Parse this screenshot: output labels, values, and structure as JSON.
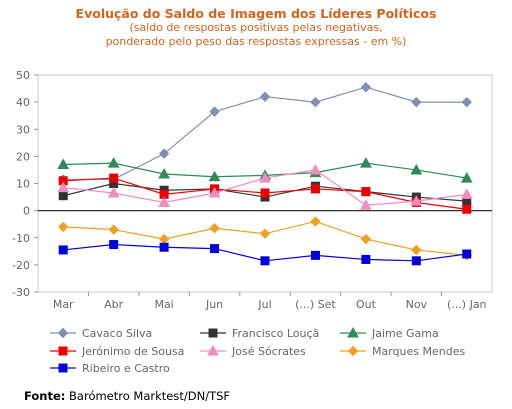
{
  "header": {
    "title": "Evolução do Saldo  de Imagem dos Líderes Políticos",
    "subtitle_line1": "(saldo de respostas positivas pelas negativas,",
    "subtitle_line2": "ponderado pelo peso das respostas expressas - em %)"
  },
  "footer": {
    "source_label": "Fonte:",
    "source_text": "Barómetro Marktest/DN/TSF"
  },
  "chart_data": {
    "type": "line",
    "title": "Evolução do Saldo  de Imagem dos Líderes Políticos",
    "xlabel": "",
    "ylabel": "",
    "ylim": [
      -30,
      50
    ],
    "yticks": [
      50,
      40,
      30,
      20,
      10,
      0,
      -10,
      -20,
      -30
    ],
    "grid": false,
    "legend_position": "bottom",
    "categories": [
      "Mar",
      "Abr",
      "Mai",
      "Jun",
      "Jul",
      "(...) Set",
      "Out",
      "Nov",
      "(...) Jan"
    ],
    "series": [
      {
        "name": "Cavaco Silva",
        "color": "#7f8fb5",
        "marker": "diamond",
        "values": [
          11.5,
          11.5,
          21,
          36.5,
          42,
          40,
          45.5,
          40,
          40
        ]
      },
      {
        "name": "Francisco Louçã",
        "color": "#333333",
        "marker": "square",
        "values": [
          5.5,
          10,
          7.5,
          8,
          5,
          9,
          7,
          5,
          3.5
        ]
      },
      {
        "name": "Jaime Gama",
        "color": "#2e8b57",
        "marker": "triangle",
        "values": [
          17,
          17.5,
          13.5,
          12.5,
          13,
          14,
          17.5,
          15,
          12
        ]
      },
      {
        "name": "Jerónimo de Sousa",
        "color": "#ee0000",
        "marker": "square",
        "values": [
          11,
          12,
          6,
          8,
          6.5,
          8,
          7,
          3,
          0.5
        ]
      },
      {
        "name": "José Sócrates",
        "color": "#f08cc0",
        "marker": "triangle",
        "values": [
          8.5,
          6.5,
          3,
          6.5,
          12,
          15,
          2,
          3.5,
          6
        ]
      },
      {
        "name": "Marques Mendes",
        "color": "#f0a020",
        "marker": "diamond",
        "values": [
          -6,
          -7,
          -10.5,
          -6.5,
          -8.5,
          -4,
          -10.5,
          -14.5,
          -16.5
        ]
      },
      {
        "name": "Ribeiro e Castro",
        "color": "#0000dd",
        "marker": "square",
        "values": [
          -14.5,
          -12.5,
          -13.5,
          -14,
          -18.5,
          -16.5,
          -18,
          -18.5,
          -16
        ]
      }
    ]
  }
}
